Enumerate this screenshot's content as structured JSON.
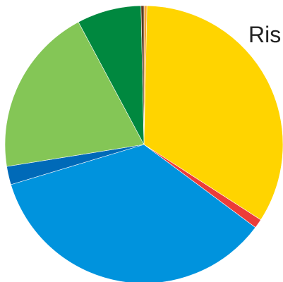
{
  "chart_data": {
    "type": "pie",
    "title": "",
    "visible_text": "Ris",
    "start_angle_deg": 90,
    "direction": "clockwise",
    "slices": [
      {
        "value": 0.35,
        "color": "#f4a23a"
      },
      {
        "value": 34.8,
        "color": "#ffd400"
      },
      {
        "value": 1.1,
        "color": "#ec3c39"
      },
      {
        "value": 36.2,
        "color": "#0093dd"
      },
      {
        "value": 2.2,
        "color": "#006ab8"
      },
      {
        "value": 20.3,
        "color": "#84c656"
      },
      {
        "value": 7.7,
        "color": "#00883f"
      },
      {
        "value": 0.35,
        "color": "#5c3a22"
      }
    ]
  }
}
